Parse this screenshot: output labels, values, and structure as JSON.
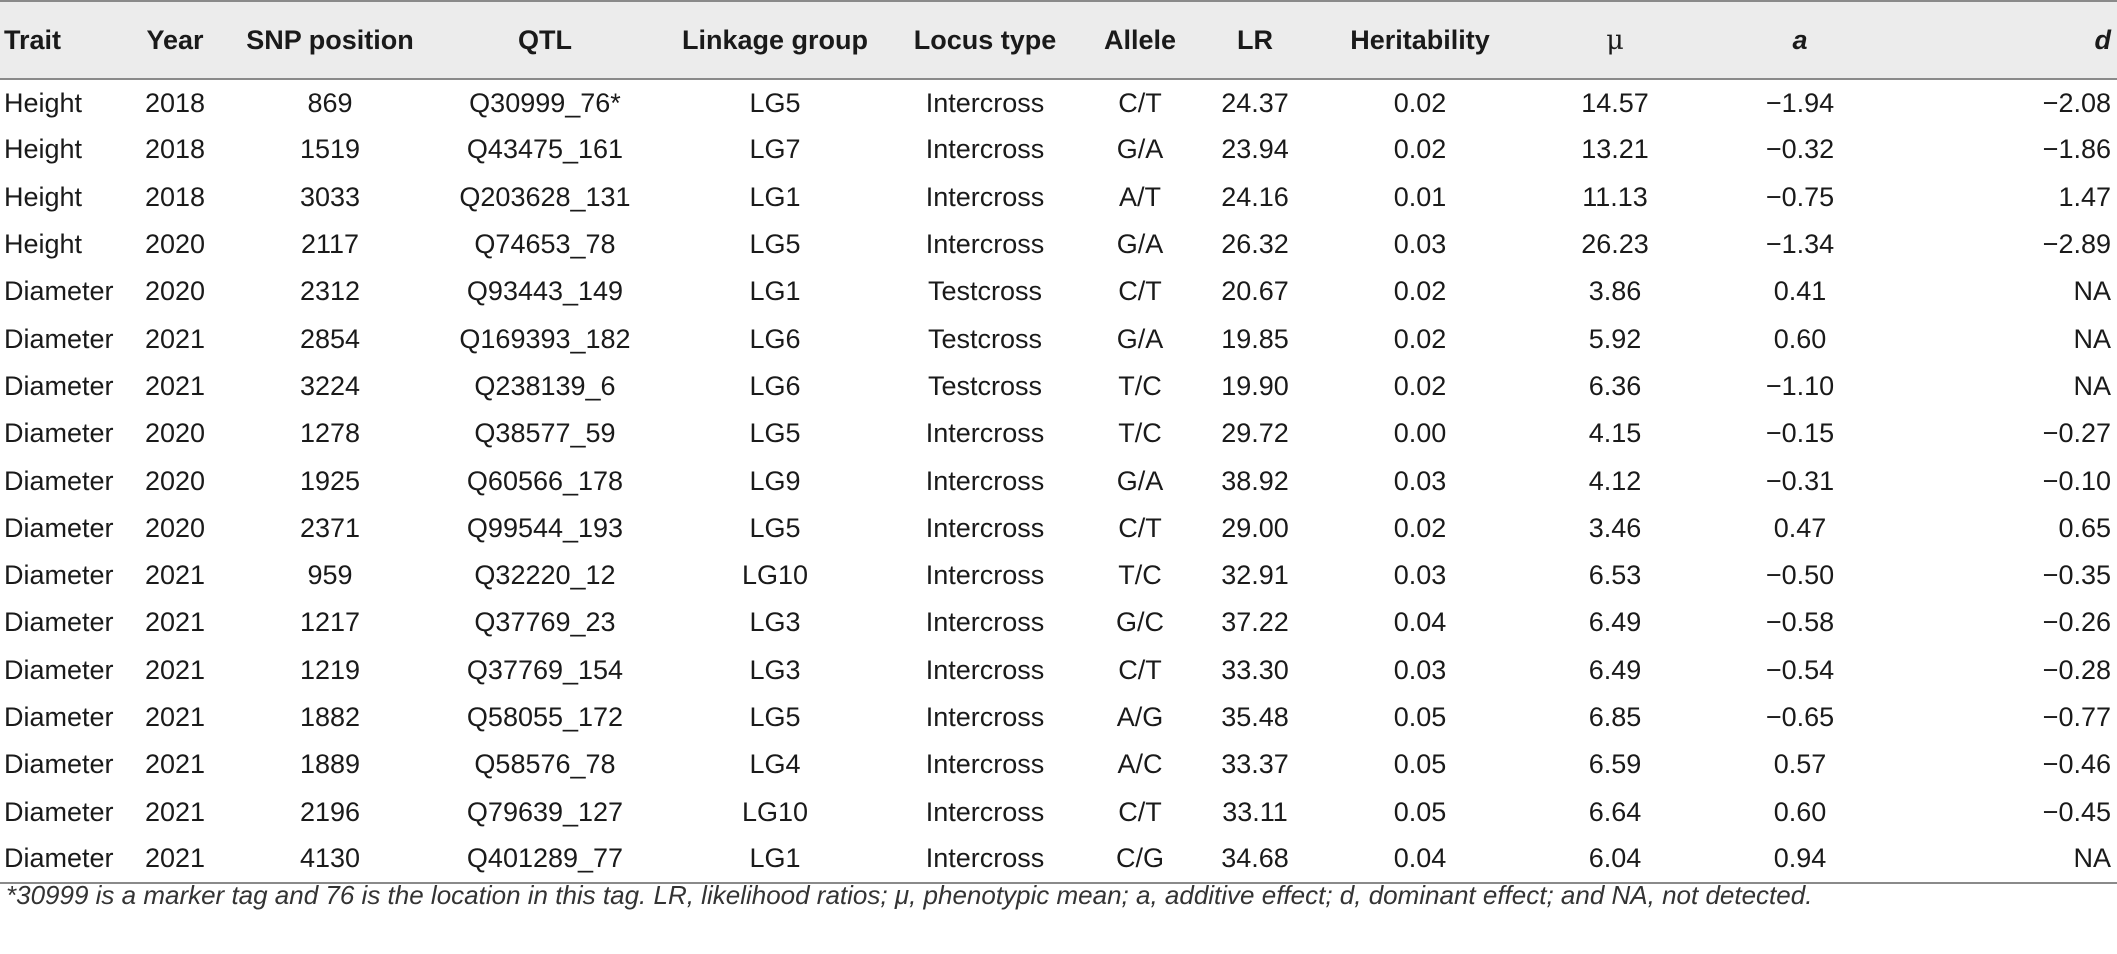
{
  "table": {
    "headers": [
      "Trait",
      "Year",
      "SNP position",
      "QTL",
      "Linkage group",
      "Locus type",
      "Allele",
      "LR",
      "Heritability",
      "μ",
      "a",
      "d"
    ],
    "rows": [
      [
        "Height",
        "2018",
        "869",
        "Q30999_76*",
        "LG5",
        "Intercross",
        "C/T",
        "24.37",
        "0.02",
        "14.57",
        "−1.94",
        "−2.08"
      ],
      [
        "Height",
        "2018",
        "1519",
        "Q43475_161",
        "LG7",
        "Intercross",
        "G/A",
        "23.94",
        "0.02",
        "13.21",
        "−0.32",
        "−1.86"
      ],
      [
        "Height",
        "2018",
        "3033",
        "Q203628_131",
        "LG1",
        "Intercross",
        "A/T",
        "24.16",
        "0.01",
        "11.13",
        "−0.75",
        "1.47"
      ],
      [
        "Height",
        "2020",
        "2117",
        "Q74653_78",
        "LG5",
        "Intercross",
        "G/A",
        "26.32",
        "0.03",
        "26.23",
        "−1.34",
        "−2.89"
      ],
      [
        "Diameter",
        "2020",
        "2312",
        "Q93443_149",
        "LG1",
        "Testcross",
        "C/T",
        "20.67",
        "0.02",
        "3.86",
        "0.41",
        "NA"
      ],
      [
        "Diameter",
        "2021",
        "2854",
        "Q169393_182",
        "LG6",
        "Testcross",
        "G/A",
        "19.85",
        "0.02",
        "5.92",
        "0.60",
        "NA"
      ],
      [
        "Diameter",
        "2021",
        "3224",
        "Q238139_6",
        "LG6",
        "Testcross",
        "T/C",
        "19.90",
        "0.02",
        "6.36",
        "−1.10",
        "NA"
      ],
      [
        "Diameter",
        "2020",
        "1278",
        "Q38577_59",
        "LG5",
        "Intercross",
        "T/C",
        "29.72",
        "0.00",
        "4.15",
        "−0.15",
        "−0.27"
      ],
      [
        "Diameter",
        "2020",
        "1925",
        "Q60566_178",
        "LG9",
        "Intercross",
        "G/A",
        "38.92",
        "0.03",
        "4.12",
        "−0.31",
        "−0.10"
      ],
      [
        "Diameter",
        "2020",
        "2371",
        "Q99544_193",
        "LG5",
        "Intercross",
        "C/T",
        "29.00",
        "0.02",
        "3.46",
        "0.47",
        "0.65"
      ],
      [
        "Diameter",
        "2021",
        "959",
        "Q32220_12",
        "LG10",
        "Intercross",
        "T/C",
        "32.91",
        "0.03",
        "6.53",
        "−0.50",
        "−0.35"
      ],
      [
        "Diameter",
        "2021",
        "1217",
        "Q37769_23",
        "LG3",
        "Intercross",
        "G/C",
        "37.22",
        "0.04",
        "6.49",
        "−0.58",
        "−0.26"
      ],
      [
        "Diameter",
        "2021",
        "1219",
        "Q37769_154",
        "LG3",
        "Intercross",
        "C/T",
        "33.30",
        "0.03",
        "6.49",
        "−0.54",
        "−0.28"
      ],
      [
        "Diameter",
        "2021",
        "1882",
        "Q58055_172",
        "LG5",
        "Intercross",
        "A/G",
        "35.48",
        "0.05",
        "6.85",
        "−0.65",
        "−0.77"
      ],
      [
        "Diameter",
        "2021",
        "1889",
        "Q58576_78",
        "LG4",
        "Intercross",
        "A/C",
        "33.37",
        "0.05",
        "6.59",
        "0.57",
        "−0.46"
      ],
      [
        "Diameter",
        "2021",
        "2196",
        "Q79639_127",
        "LG10",
        "Intercross",
        "C/T",
        "33.11",
        "0.05",
        "6.64",
        "0.60",
        "−0.45"
      ],
      [
        "Diameter",
        "2021",
        "4130",
        "Q401289_77",
        "LG1",
        "Intercross",
        "C/G",
        "34.68",
        "0.04",
        "6.04",
        "0.94",
        "NA"
      ]
    ]
  },
  "footnote": "*30999 is a marker tag and 76 is the location in this tag. LR, likelihood ratios; μ, phenotypic mean; a, additive effect; d, dominant effect; and NA, not detected.",
  "colors": {
    "header_background": "#ececec",
    "rule": "#8a8a8a",
    "text": "#1a1a1a"
  }
}
